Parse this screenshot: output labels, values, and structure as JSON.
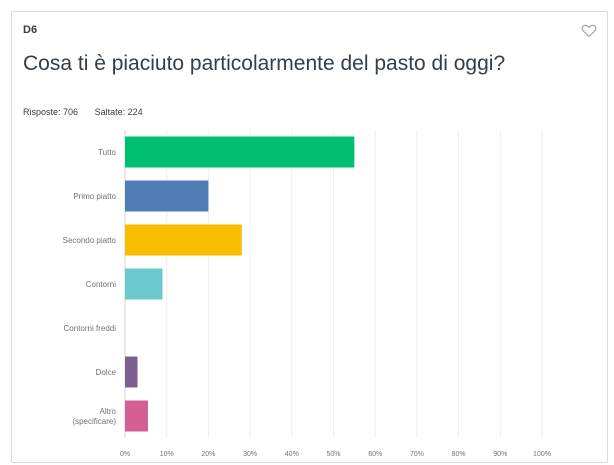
{
  "question": {
    "number": "D6",
    "title": "Cosa ti è piaciuto particolarmente del pasto di oggi?",
    "answered": "Risposte: 706",
    "skipped": "Saltate: 224"
  },
  "icons": {
    "favorite": "heart-outline-icon"
  },
  "chart_data": {
    "type": "bar",
    "orientation": "horizontal",
    "categories": [
      "Tutto",
      "Primo piatto",
      "Secondo piatto",
      "Contorni",
      "Contorni freddi",
      "Dolce",
      "Altro (specificare)"
    ],
    "category_lines": [
      [
        "Tutto"
      ],
      [
        "Primo piatto"
      ],
      [
        "Secondo piatto"
      ],
      [
        "Contorni"
      ],
      [
        "Contorni freddi"
      ],
      [
        "Dolce"
      ],
      [
        "Altro",
        "(specificare)"
      ]
    ],
    "values": [
      55,
      20,
      28,
      9,
      0,
      3,
      5.5
    ],
    "colors": [
      "#00bf6f",
      "#507cb6",
      "#f9be00",
      "#6bc8cd",
      "#ff8b4f",
      "#7d5e90",
      "#d25f90"
    ],
    "xticks": [
      "0%",
      "10%",
      "20%",
      "30%",
      "40%",
      "50%",
      "60%",
      "70%",
      "80%",
      "90%",
      "100%"
    ],
    "xlim": [
      0,
      100
    ],
    "unit": "%",
    "grid": true,
    "legend": "none"
  }
}
